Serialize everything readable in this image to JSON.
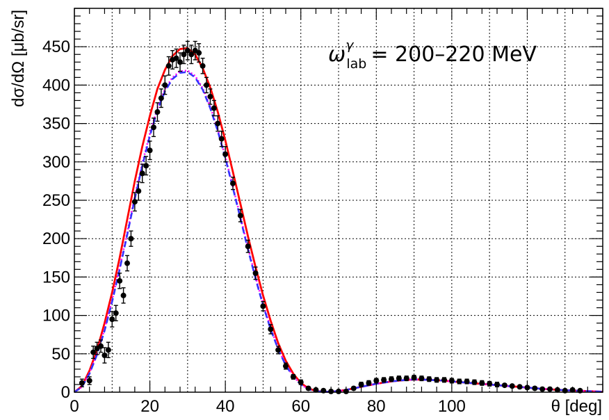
{
  "chart_data": {
    "type": "scatter",
    "title": "",
    "xlabel": "θ [deg]",
    "ylabel": "dσ/dΩ [μb/sr]",
    "xlim": [
      0,
      140
    ],
    "ylim": [
      0,
      500
    ],
    "x_ticks": [
      0,
      20,
      40,
      60,
      80,
      100
    ],
    "y_ticks": [
      0,
      50,
      100,
      150,
      200,
      250,
      300,
      350,
      400,
      450
    ],
    "annotation": {
      "symbol": "ω",
      "superscript": "γ",
      "subscript": "lab",
      "text": "= 200–220 MeV"
    },
    "series": [
      {
        "name": "data",
        "kind": "points",
        "color": "#000000",
        "x": [
          2,
          4,
          5,
          6,
          7,
          8,
          9,
          10,
          11,
          12,
          13,
          14,
          15,
          16,
          17,
          18,
          19,
          20,
          21,
          22,
          23,
          24,
          25,
          26,
          27,
          28,
          29,
          30,
          31,
          32,
          33,
          34,
          35,
          36,
          37,
          38,
          39,
          40,
          42,
          44,
          46,
          48,
          50,
          52,
          54,
          56,
          58,
          60,
          62,
          64,
          66,
          68,
          70,
          72,
          74,
          76,
          78,
          80,
          82,
          84,
          86,
          88,
          90,
          92,
          94,
          96,
          98,
          100,
          102,
          104,
          106,
          108,
          110,
          112,
          114,
          116,
          118,
          120,
          122,
          124,
          126,
          128,
          130,
          132,
          134
        ],
        "y": [
          12,
          15,
          52,
          57,
          60,
          48,
          55,
          95,
          103,
          145,
          126,
          168,
          200,
          248,
          262,
          285,
          295,
          315,
          345,
          365,
          383,
          400,
          425,
          433,
          435,
          430,
          440,
          445,
          440,
          445,
          442,
          425,
          400,
          385,
          370,
          350,
          330,
          310,
          272,
          230,
          190,
          155,
          112,
          82,
          55,
          34,
          20,
          13,
          5,
          3,
          2,
          1,
          1,
          1,
          5,
          10,
          12,
          15,
          16,
          17,
          18,
          18,
          19,
          18,
          17,
          16,
          16,
          15,
          14,
          14,
          13,
          12,
          11,
          10,
          9,
          8,
          7,
          6,
          5,
          4,
          4,
          3,
          2,
          3,
          2
        ],
        "yerr": [
          5,
          5,
          8,
          8,
          8,
          10,
          10,
          10,
          10,
          10,
          10,
          10,
          10,
          12,
          12,
          12,
          12,
          12,
          12,
          12,
          12,
          12,
          12,
          12,
          12,
          12,
          12,
          12,
          12,
          12,
          12,
          10,
          10,
          10,
          10,
          10,
          10,
          10,
          8,
          8,
          8,
          8,
          6,
          6,
          5,
          4,
          3,
          3,
          2,
          2,
          2,
          2,
          2,
          2,
          2,
          3,
          3,
          3,
          3,
          3,
          3,
          3,
          3,
          3,
          3,
          3,
          3,
          3,
          3,
          3,
          3,
          3,
          3,
          3,
          2,
          2,
          2,
          2,
          2,
          2,
          2,
          2,
          2,
          2,
          2
        ]
      },
      {
        "name": "model-red-solid",
        "kind": "line",
        "style": "solid",
        "color": "#ff0000",
        "x": [
          0,
          2,
          4,
          6,
          8,
          10,
          12,
          14,
          16,
          18,
          20,
          22,
          24,
          26,
          28,
          30,
          32,
          34,
          36,
          38,
          40,
          42,
          44,
          46,
          48,
          50,
          52,
          54,
          56,
          58,
          60,
          62,
          64,
          66,
          68,
          70,
          72,
          74,
          76,
          78,
          80,
          82,
          84,
          86,
          88,
          90,
          92,
          94,
          96,
          98,
          100,
          105,
          110,
          115,
          120,
          125,
          130,
          135,
          140
        ],
        "y": [
          0,
          8,
          28,
          55,
          90,
          130,
          175,
          225,
          275,
          320,
          360,
          395,
          420,
          438,
          447,
          448,
          440,
          422,
          397,
          365,
          328,
          287,
          245,
          203,
          163,
          126,
          93,
          64,
          41,
          24,
          12,
          5,
          1.5,
          0.5,
          0.5,
          1.5,
          3,
          5,
          7,
          9,
          11,
          12.5,
          14,
          15,
          16,
          16.5,
          16.5,
          16,
          15.5,
          15,
          14,
          12,
          10,
          8,
          6,
          4,
          2.5,
          1.5,
          0.5
        ]
      },
      {
        "name": "model-magenta-dotted",
        "kind": "line",
        "style": "dotted",
        "color": "#ff00ff",
        "x": [
          0,
          2,
          4,
          6,
          8,
          10,
          12,
          14,
          16,
          18,
          20,
          22,
          24,
          26,
          28,
          30,
          32,
          34,
          36,
          38,
          40,
          42,
          44,
          46,
          48,
          50,
          52,
          54,
          56,
          58,
          60,
          62,
          64,
          66,
          68,
          70,
          72,
          74,
          76,
          78,
          80,
          82,
          84,
          86,
          88,
          90,
          92,
          94,
          96,
          98,
          100,
          105,
          110,
          115,
          120,
          125,
          130,
          135,
          140
        ],
        "y": [
          0,
          7,
          25,
          50,
          82,
          120,
          162,
          208,
          255,
          298,
          337,
          370,
          395,
          410,
          418,
          419,
          412,
          396,
          372,
          342,
          307,
          268,
          228,
          188,
          150,
          115,
          84,
          57,
          36,
          21,
          10,
          4,
          1,
          0.5,
          0.5,
          1.5,
          3,
          5,
          7,
          9,
          11,
          12.5,
          14,
          15,
          16,
          16.5,
          16.5,
          16,
          15.5,
          15,
          14,
          12,
          10,
          8,
          6,
          4,
          2.5,
          1.5,
          0.5
        ]
      },
      {
        "name": "model-blue-dashed",
        "kind": "line",
        "style": "dashed",
        "color": "#3333ff",
        "x": [
          0,
          2,
          4,
          6,
          8,
          10,
          12,
          14,
          16,
          18,
          20,
          22,
          24,
          26,
          28,
          30,
          32,
          34,
          36,
          38,
          40,
          42,
          44,
          46,
          48,
          50,
          52,
          54,
          56,
          58,
          60,
          62,
          64,
          66,
          68,
          70,
          72,
          74,
          76,
          78,
          80,
          82,
          84,
          86,
          88,
          90,
          92,
          94,
          96,
          98,
          100,
          105,
          110,
          115,
          120,
          125,
          130,
          135,
          140
        ],
        "y": [
          0,
          7,
          24,
          49,
          80,
          118,
          160,
          205,
          252,
          295,
          334,
          367,
          392,
          408,
          416,
          417,
          410,
          394,
          370,
          340,
          305,
          266,
          226,
          186,
          148,
          113,
          82,
          56,
          35,
          20,
          10,
          4,
          1,
          0.5,
          0.5,
          1.5,
          3,
          5,
          7,
          9,
          11,
          12.5,
          14,
          15,
          16,
          16.5,
          16.5,
          16,
          15.5,
          15,
          14,
          12,
          10,
          8,
          6,
          4,
          2.5,
          1.5,
          0.5
        ]
      }
    ]
  }
}
